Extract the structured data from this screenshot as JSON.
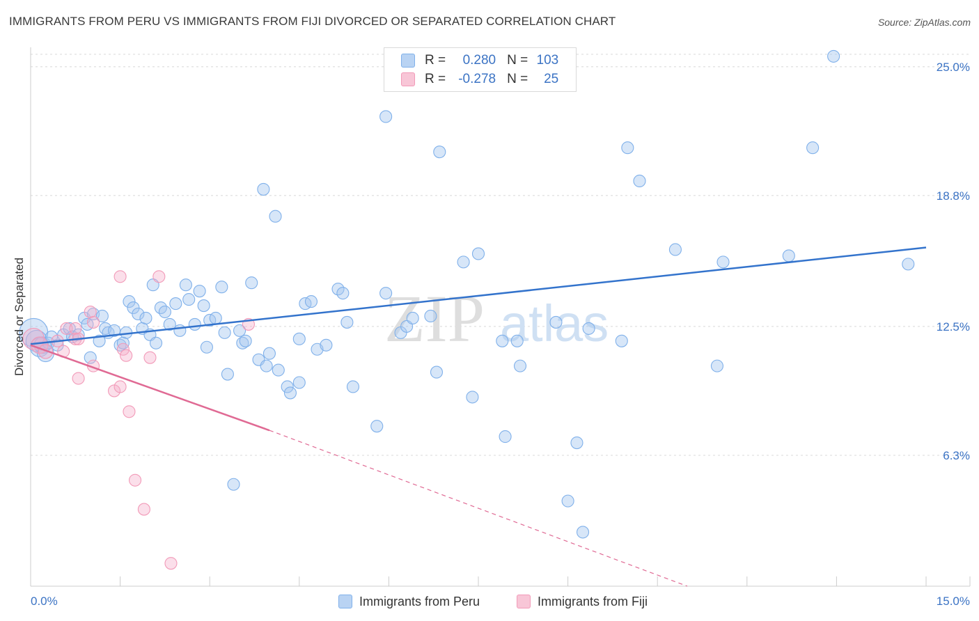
{
  "title": "IMMIGRANTS FROM PERU VS IMMIGRANTS FROM FIJI DIVORCED OR SEPARATED CORRELATION CHART",
  "source": "Source: ZipAtlas.com",
  "watermark": {
    "zip": "ZIP",
    "atlas": "atlas"
  },
  "legend": {
    "r_label": "R =",
    "n_label": "N =",
    "rows": [
      {
        "name": "Immigrants from Peru",
        "r": "0.280",
        "n": "103",
        "color": "#7fb0ea"
      },
      {
        "name": "Immigrants from Fiji",
        "r": "-0.278",
        "n": "25",
        "color": "#f29ab8"
      }
    ]
  },
  "chart_data": {
    "type": "scatter",
    "title": "IMMIGRANTS FROM PERU VS IMMIGRANTS FROM FIJI DIVORCED OR SEPARATED CORRELATION CHART",
    "xlabel": "",
    "ylabel": "Divorced or Separated",
    "xlim": [
      0,
      15
    ],
    "ylim": [
      0,
      26.2
    ],
    "x_tick_labels": {
      "left": "0.0%",
      "right": "15.0%"
    },
    "y_ticks": [
      {
        "value": 6.3,
        "label": "6.3%"
      },
      {
        "value": 12.5,
        "label": "12.5%"
      },
      {
        "value": 18.8,
        "label": "18.8%"
      },
      {
        "value": 25.0,
        "label": "25.0%"
      }
    ],
    "series": [
      {
        "name": "Immigrants from Peru",
        "color": "#7fb0ea",
        "line_color": "#3373cc",
        "trend": {
          "x0": 0,
          "y0": 11.65,
          "x1": 15,
          "y1": 16.3
        },
        "points": [
          [
            0.05,
            12.2,
            2.4
          ],
          [
            0.1,
            11.8,
            1.8
          ],
          [
            0.15,
            11.5,
            1.6
          ],
          [
            0.2,
            11.6,
            1.4
          ],
          [
            0.25,
            11.2,
            1.4
          ],
          [
            0.3,
            11.7,
            1.0
          ],
          [
            0.35,
            12.0,
            1.0
          ],
          [
            0.45,
            11.6,
            1.0
          ],
          [
            0.55,
            12.1,
            1.0
          ],
          [
            0.65,
            12.4,
            1.0
          ],
          [
            0.7,
            12.0,
            1.0
          ],
          [
            0.8,
            12.1,
            1.0
          ],
          [
            0.9,
            12.9,
            1.0
          ],
          [
            1.0,
            11.0,
            1.0
          ],
          [
            1.05,
            13.1,
            1.0
          ],
          [
            1.15,
            11.8,
            1.0
          ],
          [
            1.2,
            13.0,
            1.0
          ],
          [
            1.25,
            12.4,
            1.0
          ],
          [
            1.3,
            12.2,
            1.0
          ],
          [
            1.4,
            12.3,
            1.0
          ],
          [
            1.5,
            11.6,
            1.0
          ],
          [
            1.6,
            12.2,
            1.0
          ],
          [
            1.65,
            13.7,
            1.0
          ],
          [
            1.72,
            13.4,
            1.0
          ],
          [
            1.8,
            13.1,
            1.0
          ],
          [
            1.87,
            12.4,
            1.0
          ],
          [
            1.93,
            12.9,
            1.0
          ],
          [
            2.0,
            12.1,
            1.0
          ],
          [
            2.05,
            14.5,
            1.0
          ],
          [
            2.1,
            11.7,
            1.0
          ],
          [
            2.18,
            13.4,
            1.0
          ],
          [
            2.25,
            13.2,
            1.0
          ],
          [
            2.33,
            12.6,
            1.0
          ],
          [
            2.43,
            13.6,
            1.0
          ],
          [
            2.5,
            12.3,
            1.0
          ],
          [
            2.6,
            14.5,
            1.0
          ],
          [
            2.65,
            13.8,
            1.0
          ],
          [
            2.75,
            12.6,
            1.0
          ],
          [
            2.83,
            14.2,
            1.0
          ],
          [
            2.9,
            13.5,
            1.0
          ],
          [
            2.95,
            11.5,
            1.0
          ],
          [
            3.0,
            12.8,
            1.0
          ],
          [
            3.1,
            12.9,
            1.0
          ],
          [
            3.2,
            14.4,
            1.0
          ],
          [
            3.25,
            12.2,
            1.0
          ],
          [
            3.3,
            10.2,
            1.0
          ],
          [
            3.5,
            12.3,
            1.0
          ],
          [
            3.55,
            11.7,
            1.0
          ],
          [
            3.6,
            11.8,
            1.0
          ],
          [
            3.7,
            14.6,
            1.0
          ],
          [
            3.82,
            10.9,
            1.0
          ],
          [
            3.95,
            10.6,
            1.0
          ],
          [
            4.15,
            10.4,
            1.0
          ],
          [
            4.3,
            9.6,
            1.0
          ],
          [
            4.35,
            9.3,
            1.0
          ],
          [
            4.5,
            11.9,
            1.0
          ],
          [
            4.6,
            13.6,
            1.0
          ],
          [
            4.7,
            13.7,
            1.0
          ],
          [
            4.8,
            11.4,
            1.0
          ],
          [
            4.95,
            11.6,
            1.0
          ],
          [
            5.15,
            14.3,
            1.0
          ],
          [
            5.23,
            14.1,
            1.0
          ],
          [
            5.3,
            12.7,
            1.0
          ],
          [
            5.4,
            9.6,
            1.0
          ],
          [
            5.95,
            14.1,
            1.0
          ],
          [
            6.2,
            12.2,
            1.0
          ],
          [
            6.3,
            12.5,
            1.0
          ],
          [
            6.4,
            12.9,
            1.0
          ],
          [
            6.7,
            13.0,
            1.0
          ],
          [
            6.8,
            10.3,
            1.0
          ],
          [
            7.25,
            15.6,
            1.0
          ],
          [
            7.4,
            9.1,
            1.0
          ],
          [
            7.5,
            16.0,
            1.0
          ],
          [
            7.9,
            11.8,
            1.0
          ],
          [
            7.95,
            7.2,
            1.0
          ],
          [
            8.15,
            11.8,
            1.0
          ],
          [
            8.2,
            10.6,
            1.0
          ],
          [
            8.8,
            12.7,
            1.0
          ],
          [
            9.15,
            6.9,
            1.0
          ],
          [
            9.35,
            12.4,
            1.0
          ],
          [
            9.0,
            4.1,
            1.0
          ],
          [
            9.25,
            2.6,
            1.0
          ],
          [
            9.9,
            11.8,
            1.0
          ],
          [
            10.0,
            21.1,
            1.0
          ],
          [
            10.2,
            19.5,
            1.0
          ],
          [
            10.8,
            16.2,
            1.0
          ],
          [
            11.5,
            10.6,
            1.0
          ],
          [
            11.6,
            15.6,
            1.0
          ],
          [
            13.1,
            21.1,
            1.0
          ],
          [
            13.45,
            25.5,
            1.0
          ],
          [
            12.7,
            15.9,
            1.0
          ],
          [
            14.7,
            15.5,
            1.0
          ],
          [
            7.95,
            24.2,
            1.0
          ],
          [
            6.85,
            20.9,
            1.0
          ],
          [
            5.95,
            22.6,
            1.0
          ],
          [
            3.9,
            19.1,
            1.0
          ],
          [
            4.1,
            17.8,
            1.0
          ],
          [
            4.5,
            9.8,
            1.0
          ],
          [
            3.4,
            4.9,
            1.0
          ],
          [
            5.8,
            7.7,
            1.0
          ],
          [
            4.0,
            11.2,
            1.0
          ],
          [
            1.55,
            11.7,
            1.0
          ],
          [
            0.95,
            12.6,
            1.0
          ]
        ]
      },
      {
        "name": "Immigrants from Fiji",
        "color": "#f29ab8",
        "line_color": "#e06a94",
        "trend": {
          "x0": 0,
          "y0": 11.6,
          "x1": 4.0,
          "y1": 7.5,
          "dash_to": {
            "x": 11.0,
            "y": 0
          }
        },
        "points": [
          [
            0.05,
            11.9,
            1.8
          ],
          [
            0.15,
            11.6,
            1.4
          ],
          [
            0.25,
            11.3,
            1.2
          ],
          [
            0.45,
            11.8,
            1.0
          ],
          [
            0.55,
            11.3,
            1.0
          ],
          [
            0.6,
            12.4,
            1.0
          ],
          [
            0.75,
            11.9,
            1.0
          ],
          [
            1.0,
            13.2,
            1.0
          ],
          [
            0.75,
            12.4,
            1.0
          ],
          [
            0.8,
            11.9,
            1.0
          ],
          [
            1.05,
            12.7,
            1.0
          ],
          [
            1.05,
            10.6,
            1.0
          ],
          [
            0.8,
            10.0,
            1.0
          ],
          [
            1.4,
            9.4,
            1.0
          ],
          [
            1.5,
            9.6,
            1.0
          ],
          [
            1.55,
            11.4,
            1.0
          ],
          [
            1.5,
            14.9,
            1.0
          ],
          [
            1.6,
            11.1,
            1.0
          ],
          [
            1.65,
            8.4,
            1.0
          ],
          [
            2.0,
            11.0,
            1.0
          ],
          [
            2.15,
            14.9,
            1.0
          ],
          [
            1.75,
            5.1,
            1.0
          ],
          [
            1.9,
            3.7,
            1.0
          ],
          [
            2.35,
            1.1,
            1.0
          ],
          [
            3.65,
            12.6,
            1.0
          ]
        ]
      }
    ]
  }
}
